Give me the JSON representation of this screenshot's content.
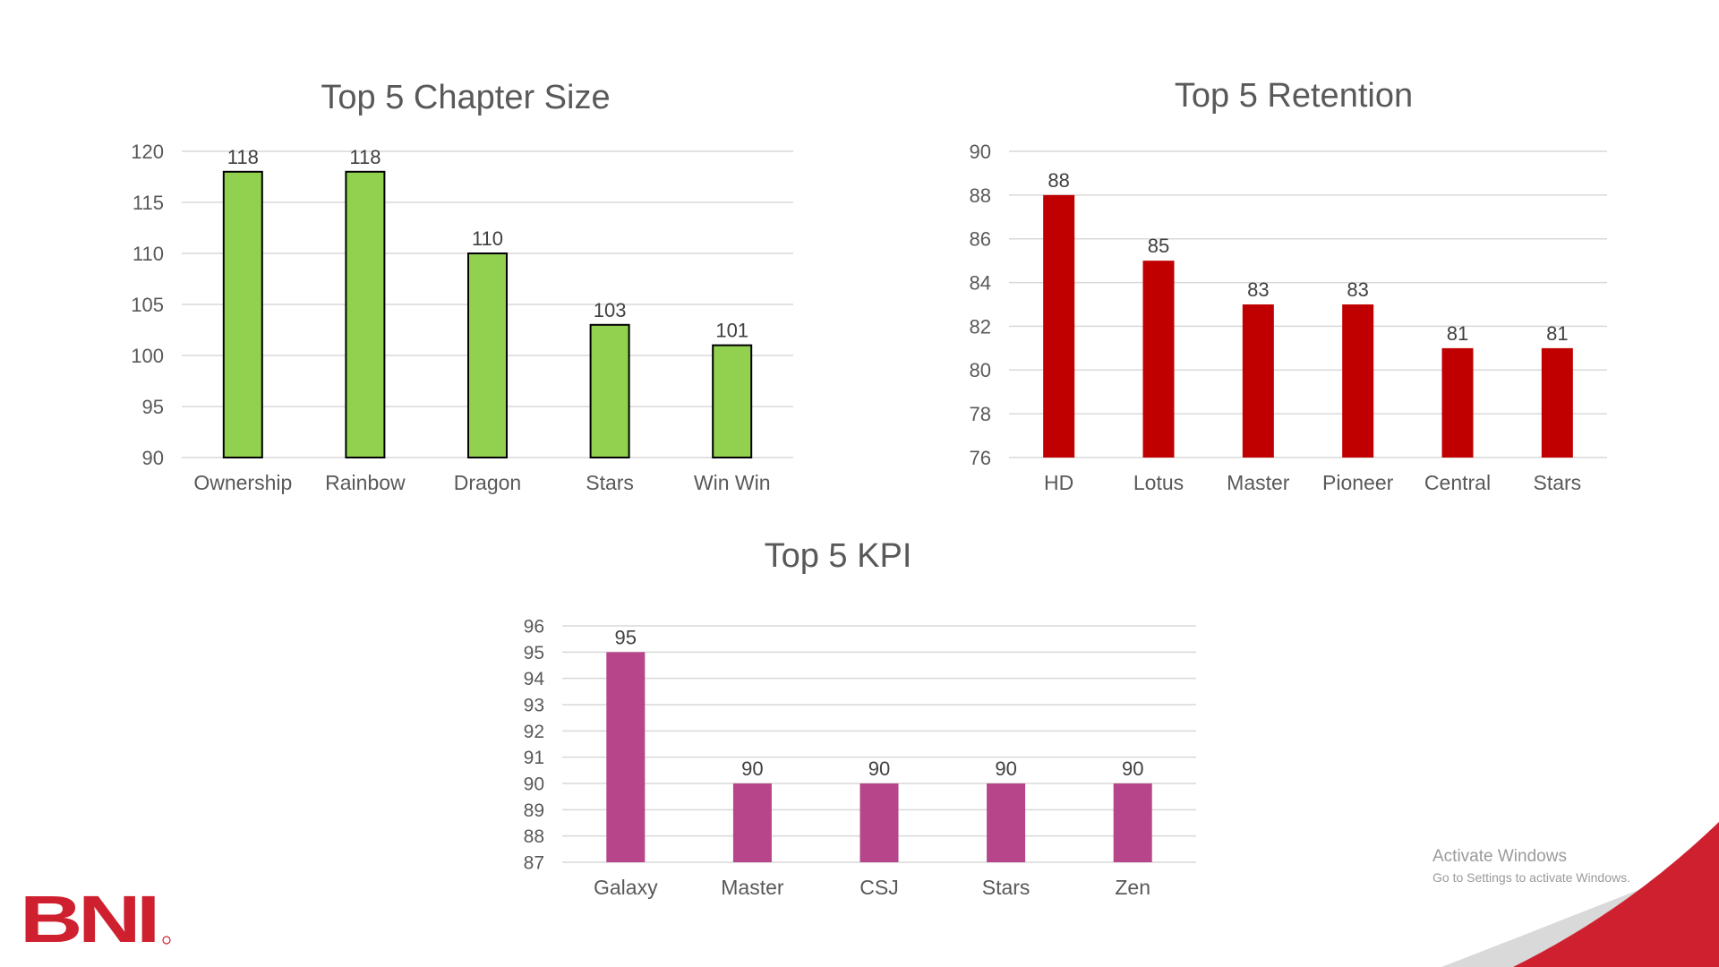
{
  "brand": {
    "logo_text": "BNI",
    "logo_color": "#cf2030",
    "corner_red": "#cf2030",
    "corner_gray": "#d9d9d9"
  },
  "watermark": {
    "line1": "Activate Windows",
    "line2": "Go to Settings to activate Windows."
  },
  "chart_data": [
    {
      "type": "bar",
      "title": "Top 5 Chapter Size",
      "categories": [
        "Ownership",
        "Rainbow",
        "Dragon",
        "Stars",
        "Win Win"
      ],
      "values": [
        118,
        118,
        110,
        103,
        101
      ],
      "ylim": [
        90,
        120
      ],
      "yticks": [
        90,
        95,
        100,
        105,
        110,
        115,
        120
      ],
      "color": "#92d050",
      "outline": "#000000",
      "grid": true,
      "xlabel": "",
      "ylabel": ""
    },
    {
      "type": "bar",
      "title": "Top 5 Retention",
      "categories": [
        "HD",
        "Lotus",
        "Master",
        "Pioneer",
        "Central",
        "Stars"
      ],
      "values": [
        88,
        85,
        83,
        83,
        81,
        81
      ],
      "ylim": [
        76,
        90
      ],
      "yticks": [
        76,
        78,
        80,
        82,
        84,
        86,
        88,
        90
      ],
      "color": "#c00000",
      "outline": "",
      "grid": true,
      "xlabel": "",
      "ylabel": ""
    },
    {
      "type": "bar",
      "title": "Top 5 KPI",
      "categories": [
        "Galaxy",
        "Master",
        "CSJ",
        "Stars",
        "Zen"
      ],
      "values": [
        95,
        90,
        90,
        90,
        90
      ],
      "ylim": [
        87,
        96
      ],
      "yticks": [
        87,
        88,
        89,
        90,
        91,
        92,
        93,
        94,
        95,
        96
      ],
      "color": "#b64589",
      "outline": "",
      "grid": true,
      "xlabel": "",
      "ylabel": ""
    }
  ]
}
